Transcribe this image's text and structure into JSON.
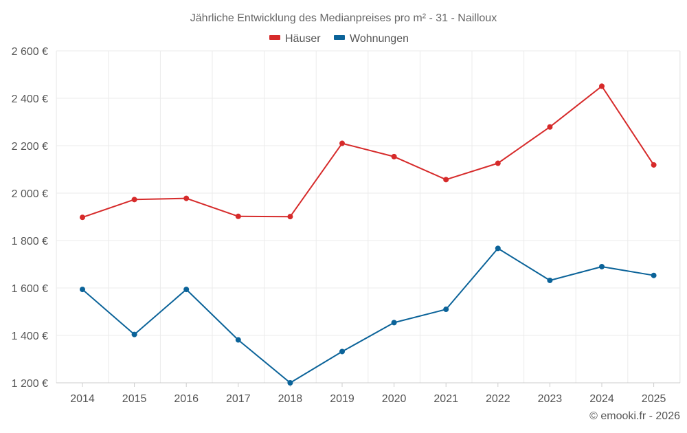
{
  "chart_data": {
    "type": "line",
    "title": "Jährliche Entwicklung des Medianpreises pro m² - 31 - Nailloux",
    "xlabel": "",
    "ylabel": "",
    "categories": [
      "2014",
      "2015",
      "2016",
      "2017",
      "2018",
      "2019",
      "2020",
      "2021",
      "2022",
      "2023",
      "2024",
      "2025"
    ],
    "ylim": [
      1200,
      2600
    ],
    "yticks": [
      1200,
      1400,
      1600,
      1800,
      2000,
      2200,
      2400,
      2600
    ],
    "ytick_labels": [
      "1 200 €",
      "1 400 €",
      "1 600 €",
      "1 800 €",
      "2 000 €",
      "2 200 €",
      "2 400 €",
      "2 600 €"
    ],
    "grid": true,
    "legend_position": "top-center",
    "series": [
      {
        "name": "Häuser",
        "color": "#d62a2a",
        "values": [
          1898,
          1973,
          1978,
          1902,
          1901,
          2210,
          2154,
          2057,
          2126,
          2279,
          2451,
          2119
        ]
      },
      {
        "name": "Wohnungen",
        "color": "#0b6399",
        "values": [
          1594,
          1404,
          1594,
          1381,
          1200,
          1332,
          1454,
          1510,
          1767,
          1632,
          1690,
          1653
        ]
      }
    ],
    "credit": "© emooki.fr - 2026"
  }
}
